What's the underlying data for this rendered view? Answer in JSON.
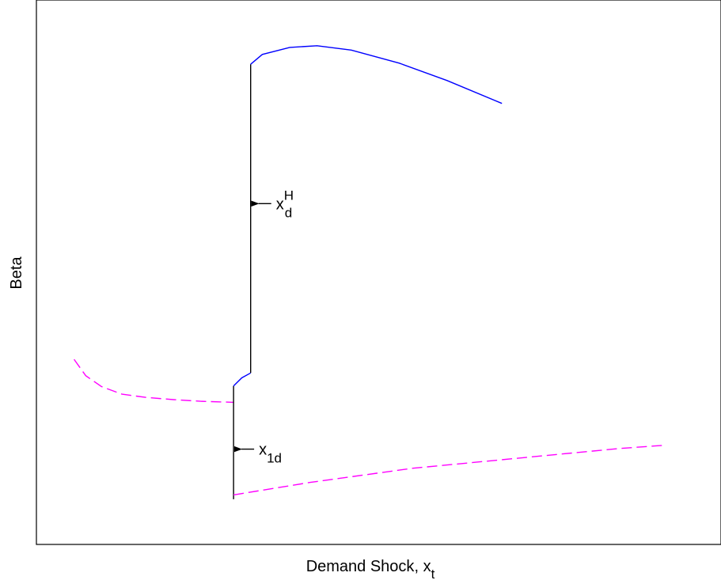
{
  "chart_data": {
    "type": "line",
    "title": "",
    "xlabel": "Demand Shock",
    "xlabel_var": "x",
    "xlabel_sub": "t",
    "ylabel": "Beta",
    "xlim": [
      0,
      1
    ],
    "ylim": [
      0,
      1
    ],
    "grid": false,
    "ticks": false,
    "series": [
      {
        "style": "dashed",
        "color": "#ff00ff",
        "points": [
          [
            0.055,
            0.34
          ],
          [
            0.072,
            0.31
          ],
          [
            0.095,
            0.29
          ],
          [
            0.125,
            0.276
          ],
          [
            0.16,
            0.27
          ],
          [
            0.2,
            0.266
          ],
          [
            0.24,
            0.263
          ],
          [
            0.288,
            0.261
          ]
        ]
      },
      {
        "style": "solid",
        "color": "#000000",
        "points": [
          [
            0.288,
            0.291
          ],
          [
            0.288,
            0.083
          ]
        ]
      },
      {
        "style": "dashed",
        "color": "#ff00ff",
        "points": [
          [
            0.288,
            0.091
          ],
          [
            0.4,
            0.114
          ],
          [
            0.55,
            0.14
          ],
          [
            0.7,
            0.158
          ],
          [
            0.85,
            0.176
          ],
          [
            0.915,
            0.182
          ]
        ]
      },
      {
        "style": "solid",
        "color": "#0000ff",
        "points": [
          [
            0.288,
            0.291
          ],
          [
            0.3,
            0.306
          ],
          [
            0.313,
            0.315
          ]
        ]
      },
      {
        "style": "solid",
        "color": "#000000",
        "points": [
          [
            0.313,
            0.315
          ],
          [
            0.313,
            0.882
          ]
        ]
      },
      {
        "style": "solid",
        "color": "#0000ff",
        "points": [
          [
            0.313,
            0.882
          ],
          [
            0.33,
            0.9
          ],
          [
            0.37,
            0.913
          ],
          [
            0.41,
            0.916
          ],
          [
            0.46,
            0.908
          ],
          [
            0.53,
            0.884
          ],
          [
            0.6,
            0.852
          ],
          [
            0.68,
            0.81
          ]
        ]
      }
    ],
    "annotations": [
      {
        "name": "x-d-H",
        "var": "x",
        "sub": "d",
        "sup": "H",
        "arrow_to": [
          0.313,
          0.626
        ]
      },
      {
        "name": "x-1d",
        "var": "x",
        "sub": "1d",
        "sup": "",
        "arrow_to": [
          0.288,
          0.175
        ]
      }
    ]
  }
}
